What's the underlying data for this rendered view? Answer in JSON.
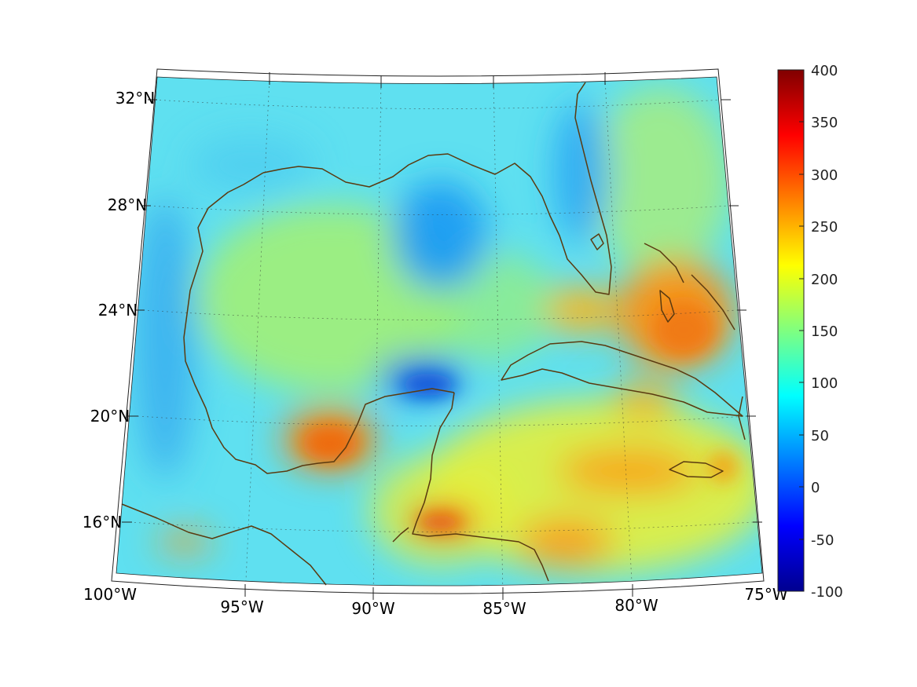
{
  "chart_data": {
    "type": "heatmap",
    "projection": "conic",
    "title": "",
    "lon_range": [
      -100,
      -75
    ],
    "lat_range": [
      14,
      33
    ],
    "lon_ticks": [
      "100°W",
      "95°W",
      "90°W",
      "85°W",
      "80°W",
      "75°W"
    ],
    "lat_ticks": [
      "16°N",
      "20°N",
      "24°N",
      "28°N",
      "32°N"
    ],
    "colorbar": {
      "colormap": "jet",
      "range": [
        -100,
        400
      ],
      "ticks": [
        "400",
        "350",
        "300",
        "250",
        "200",
        "150",
        "100",
        "50",
        "0",
        "-50",
        "-100"
      ]
    },
    "grid": true,
    "coastline_color": "#5a3a10",
    "field_features": [
      {
        "region": "central Gulf of Mexico",
        "value": 150
      },
      {
        "region": "Texas / Louisiana coast",
        "value": 100
      },
      {
        "region": "NE Gulf (off Florida panhandle)",
        "value": 60
      },
      {
        "region": "north of Yucatan",
        "value": 40
      },
      {
        "region": "Bay of Campeche",
        "value": 260
      },
      {
        "region": "Bahamas",
        "value": 270
      },
      {
        "region": "Caribbean south of Cuba",
        "value": 240
      },
      {
        "region": "Gulf of Honduras",
        "value": 280
      },
      {
        "region": "Florida Straits / off Cuba",
        "value": 230
      },
      {
        "region": "Atlantic east of Florida",
        "value": 170
      },
      {
        "region": "Pacific off southern Mexico",
        "value": 140
      }
    ]
  }
}
